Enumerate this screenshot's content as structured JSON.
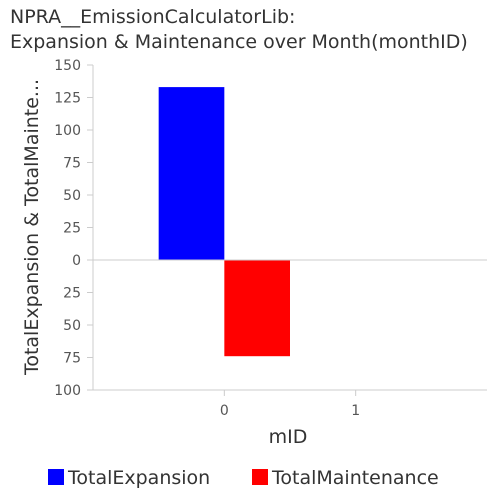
{
  "chart_data": {
    "type": "bar",
    "title_lines": [
      "NPRA__EmissionCalculatorLib:",
      "Expansion & Maintenance over Month(monthID)"
    ],
    "xlabel": "mID",
    "ylabel": "TotalExpansion & TotalMainte...",
    "categories": [
      "0",
      "1"
    ],
    "ylim": [
      -100,
      150
    ],
    "yticks": [
      150,
      125,
      100,
      75,
      50,
      25,
      0,
      -25,
      -50,
      -75,
      -100
    ],
    "ytick_labels": [
      "150",
      "125",
      "100",
      "75",
      "50",
      "25",
      "0",
      "25",
      "50",
      "75",
      "100"
    ],
    "series": [
      {
        "name": "TotalExpansion",
        "color": "#0000ff",
        "x_start": -0.5,
        "x_end": 0,
        "value": 133
      },
      {
        "name": "TotalMaintenance",
        "color": "#ff0000",
        "x_start": 0,
        "x_end": 0.5,
        "value": -74
      }
    ],
    "xlim": [
      -1,
      2
    ],
    "legend_position": "bottom",
    "grid": false
  }
}
